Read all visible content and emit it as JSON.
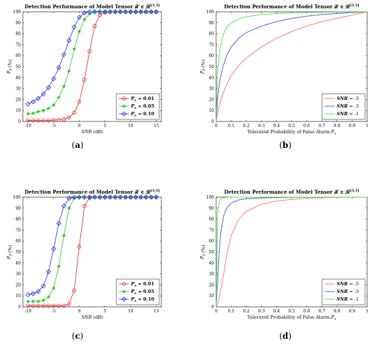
{
  "figure": {
    "captions": [
      "(a)",
      "(b)",
      "(c)",
      "(d)"
    ]
  },
  "chart_data": [
    {
      "panel": "a",
      "type": "line",
      "title": "Detection Performance of Model Tensor 𝒳 ∈ ℛ^[3,3]",
      "xlabel": "SNR (dB)",
      "ylabel": "Pd (%)",
      "xlim": [
        -11,
        16
      ],
      "ylim": [
        0,
        100
      ],
      "xticks": [
        -10,
        -5,
        0,
        5,
        10,
        15
      ],
      "yticks": [
        0,
        10,
        20,
        30,
        40,
        50,
        60,
        70,
        80,
        90,
        100
      ],
      "xtick_labels": [
        "-10",
        "-5",
        "0",
        "5",
        "10",
        "15"
      ],
      "ytick_labels": [
        "0",
        "10",
        "20",
        "30",
        "40",
        "50",
        "60",
        "70",
        "80",
        "90",
        "100"
      ],
      "grid": false,
      "legend_position": "bottom-right",
      "x": [
        -10,
        -9,
        -8,
        -7,
        -6,
        -5,
        -4,
        -3,
        -2,
        -1,
        0,
        1,
        2,
        3,
        4,
        5,
        6,
        7,
        8,
        9,
        10,
        11,
        12,
        13,
        14,
        15
      ],
      "series": [
        {
          "name": "Pa = 0.01",
          "color": "#e32222",
          "marker": "circle",
          "values": [
            1,
            1,
            1,
            1,
            1,
            1.2,
            1.5,
            2,
            3.5,
            8,
            18,
            38,
            64,
            87,
            97,
            99.5,
            100,
            100,
            100,
            100,
            100,
            100,
            100,
            100,
            100,
            100
          ]
        },
        {
          "name": "Pa = 0.05",
          "color": "#22c322",
          "marker": "star",
          "values": [
            7,
            7.5,
            9,
            10,
            12,
            15,
            22,
            32,
            46,
            66,
            82,
            93,
            98,
            100,
            100,
            100,
            100,
            100,
            100,
            100,
            100,
            100,
            100,
            100,
            100,
            100
          ]
        },
        {
          "name": "Pa = 0.10",
          "color": "#2323e0",
          "marker": "diamond",
          "values": [
            16,
            18,
            21,
            25,
            31,
            39,
            49,
            61,
            74,
            86,
            95,
            99,
            100,
            100,
            100,
            100,
            100,
            100,
            100,
            100,
            100,
            100,
            100,
            100,
            100,
            100
          ]
        }
      ]
    },
    {
      "panel": "b",
      "type": "line",
      "title": "Detection Performance of Model Tensor 𝒳 ∈ ℛ^[3,3]",
      "xlabel": "Tolerated Probability of False Alarm:Pa",
      "ylabel": "Pd (%)",
      "xlim": [
        0,
        1
      ],
      "ylim": [
        0,
        100
      ],
      "xticks": [
        0,
        0.1,
        0.2,
        0.3,
        0.4,
        0.5,
        0.6,
        0.7,
        0.8,
        0.9,
        1
      ],
      "yticks": [
        0,
        10,
        20,
        30,
        40,
        50,
        60,
        70,
        80,
        90,
        100
      ],
      "xtick_labels": [
        "0",
        "0.1",
        "0.2",
        "0.3",
        "0.4",
        "0.5",
        "0.6",
        "0.7",
        "0.8",
        "0.9",
        "1"
      ],
      "ytick_labels": [
        "0",
        "10",
        "20",
        "30",
        "40",
        "50",
        "60",
        "70",
        "80",
        "90",
        "100"
      ],
      "grid": false,
      "legend_position": "bottom-right",
      "x": [
        0,
        0.01,
        0.02,
        0.03,
        0.05,
        0.07,
        0.1,
        0.15,
        0.2,
        0.3,
        0.4,
        0.5,
        0.6,
        0.7,
        0.8,
        0.9,
        1.0
      ],
      "series": [
        {
          "name": "SNR = -5",
          "color": "#ff6b6b",
          "values": [
            0,
            8,
            14,
            19,
            27,
            34,
            42,
            51,
            58,
            68,
            76,
            82,
            87,
            91,
            94,
            97,
            100
          ]
        },
        {
          "name": "SNR = -3",
          "color": "#4a4ad6",
          "values": [
            0,
            22,
            33,
            41,
            52,
            60,
            68,
            76,
            81,
            87,
            91,
            94,
            96,
            97.5,
            98.5,
            99.3,
            100
          ]
        },
        {
          "name": "SNR = -1",
          "color": "#3ee83e",
          "values": [
            0,
            45,
            60,
            70,
            80,
            86,
            90,
            93.5,
            95.5,
            97.5,
            98.5,
            99,
            99.4,
            99.6,
            99.8,
            99.9,
            100
          ]
        }
      ]
    },
    {
      "panel": "c",
      "type": "line",
      "title": "Detection Performance of Model Tensor 𝒳 ∈ ℛ^[3,5]",
      "xlabel": "SNR (dB)",
      "ylabel": "Pd (%)",
      "xlim": [
        -11,
        16
      ],
      "ylim": [
        0,
        100
      ],
      "xticks": [
        -10,
        -5,
        0,
        5,
        10,
        15
      ],
      "yticks": [
        0,
        10,
        20,
        30,
        40,
        50,
        60,
        70,
        80,
        90,
        100
      ],
      "xtick_labels": [
        "-10",
        "-5",
        "0",
        "5",
        "10",
        "15"
      ],
      "ytick_labels": [
        "0",
        "10",
        "20",
        "30",
        "40",
        "50",
        "60",
        "70",
        "80",
        "90",
        "100"
      ],
      "grid": false,
      "legend_position": "bottom-right",
      "x": [
        -10,
        -9,
        -8,
        -7,
        -6,
        -5,
        -4,
        -3,
        -2,
        -1,
        0,
        1,
        2,
        3,
        4,
        5,
        6,
        7,
        8,
        9,
        10,
        11,
        12,
        13,
        14,
        15
      ],
      "series": [
        {
          "name": "Pa = 0.01",
          "color": "#e32222",
          "marker": "circle",
          "values": [
            1,
            1,
            1,
            1,
            1,
            1,
            1,
            1,
            2.5,
            15,
            55,
            92,
            99.5,
            100,
            100,
            100,
            100,
            100,
            100,
            100,
            100,
            100,
            100,
            100,
            100,
            100
          ]
        },
        {
          "name": "Pa = 0.05",
          "color": "#22c322",
          "marker": "star",
          "values": [
            5,
            5,
            5,
            6,
            9,
            17,
            37,
            65,
            90,
            99,
            100,
            100,
            100,
            100,
            100,
            100,
            100,
            100,
            100,
            100,
            100,
            100,
            100,
            100,
            100,
            100
          ]
        },
        {
          "name": "Pa = 0.10",
          "color": "#2323e0",
          "marker": "diamond",
          "values": [
            11,
            12,
            14,
            19,
            32,
            53,
            76,
            92,
            99,
            100,
            100,
            100,
            100,
            100,
            100,
            100,
            100,
            100,
            100,
            100,
            100,
            100,
            100,
            100,
            100,
            100
          ]
        }
      ]
    },
    {
      "panel": "d",
      "type": "line",
      "title": "Detection Performance of Model Tensor 𝒳 ∈ ℛ^[3,5]",
      "xlabel": "Tolerated Probability of False Alarm:Pa",
      "ylabel": "Pd (%)",
      "xlim": [
        0,
        1
      ],
      "ylim": [
        0,
        100
      ],
      "xticks": [
        0,
        0.1,
        0.2,
        0.3,
        0.4,
        0.5,
        0.6,
        0.7,
        0.8,
        0.9,
        1
      ],
      "yticks": [
        0,
        10,
        20,
        30,
        40,
        50,
        60,
        70,
        80,
        90,
        100
      ],
      "xtick_labels": [
        "0",
        "0.1",
        "0.2",
        "0.3",
        "0.4",
        "0.5",
        "0.6",
        "0.7",
        "0.8",
        "0.9",
        "1"
      ],
      "ytick_labels": [
        "0",
        "10",
        "20",
        "30",
        "40",
        "50",
        "60",
        "70",
        "80",
        "90",
        "100"
      ],
      "grid": false,
      "legend_position": "bottom-right",
      "x": [
        0,
        0.01,
        0.02,
        0.03,
        0.05,
        0.07,
        0.1,
        0.15,
        0.2,
        0.3,
        0.4,
        0.5,
        0.6,
        0.7,
        0.8,
        0.9,
        1.0
      ],
      "series": [
        {
          "name": "SNR = -5",
          "color": "#ff6b6b",
          "values": [
            0,
            3,
            8,
            15,
            30,
            48,
            65,
            80,
            87,
            93.5,
            96.5,
            98,
            99,
            99.5,
            99.8,
            99.9,
            100
          ]
        },
        {
          "name": "SNR = -3",
          "color": "#4a4ad6",
          "values": [
            0,
            25,
            50,
            67,
            83,
            90,
            94.5,
            97.5,
            98.5,
            99.3,
            99.6,
            99.8,
            99.9,
            100,
            100,
            100,
            100
          ]
        },
        {
          "name": "SNR = -1",
          "color": "#3ee83e",
          "values": [
            0,
            85,
            96,
            98.5,
            99.5,
            99.8,
            100,
            100,
            100,
            100,
            100,
            100,
            100,
            100,
            100,
            100,
            100
          ]
        }
      ]
    }
  ]
}
